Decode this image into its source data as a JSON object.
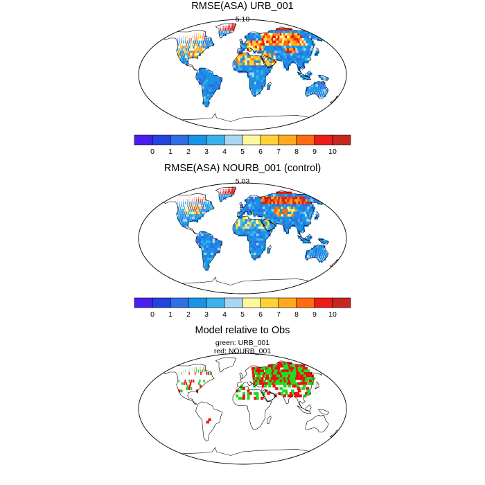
{
  "panels": [
    {
      "title": "RMSE(ASA) URB_001",
      "subtitle": "5.10"
    },
    {
      "title": "RMSE(ASA) NOURB_001 (control)",
      "subtitle": "5.03"
    },
    {
      "title": "Model relative to Obs",
      "subtitle": "green: URB_001",
      "subtitle2": "red: NOURB_001"
    }
  ],
  "colorbar": {
    "labels": [
      "0",
      "1",
      "2",
      "3",
      "4",
      "5",
      "6",
      "7",
      "8",
      "9",
      "10"
    ],
    "colors": [
      "#4B1EF0",
      "#2343E0",
      "#2F6FE3",
      "#1993E6",
      "#3BB2EC",
      "#A9D6F2",
      "#FFF7A0",
      "#FFD23A",
      "#FFAA1C",
      "#FF6A12",
      "#EE1C16",
      "#C8261E"
    ]
  },
  "legend_colors": {
    "green": "#20DD20",
    "red": "#EE1010"
  }
}
